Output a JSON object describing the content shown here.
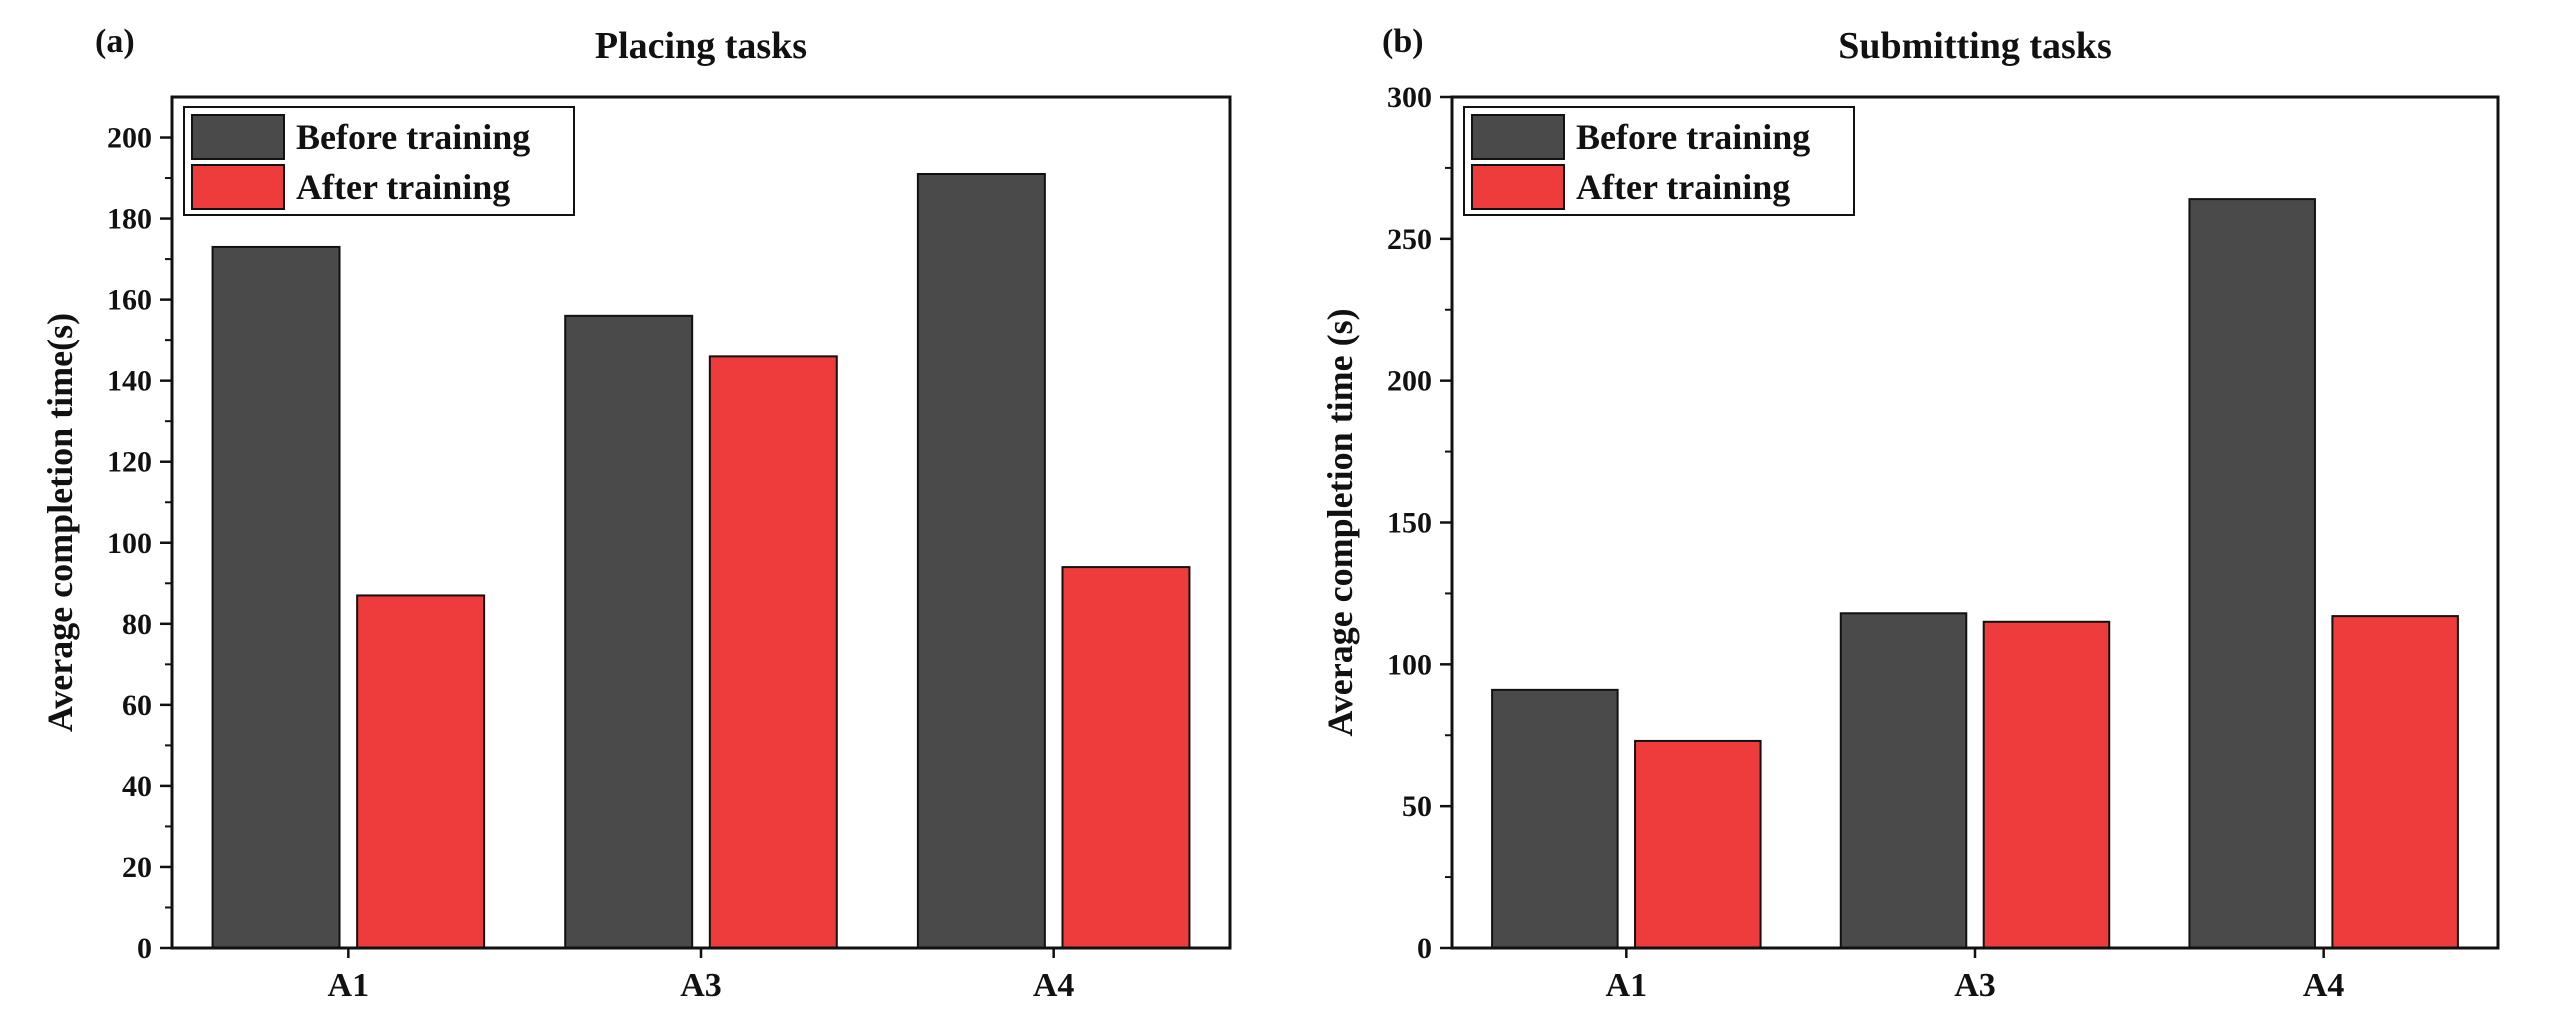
{
  "chart_data": [
    {
      "panel": "(a)",
      "type": "bar",
      "title": "Placing tasks",
      "xlabel": "",
      "ylabel": "Average completion time(s)",
      "categories": [
        "A1",
        "A3",
        "A4"
      ],
      "ylim": [
        0,
        210
      ],
      "yticks": [
        0,
        20,
        40,
        60,
        80,
        100,
        120,
        140,
        160,
        180,
        200
      ],
      "legend_position": "top-left",
      "grid": false,
      "series": [
        {
          "name": "Before training",
          "color": "#4a4a4a",
          "values": [
            173,
            156,
            191
          ]
        },
        {
          "name": "After training",
          "color": "#ee3b3b",
          "values": [
            87,
            146,
            94
          ]
        }
      ]
    },
    {
      "panel": "(b)",
      "type": "bar",
      "title": "Submitting tasks",
      "xlabel": "",
      "ylabel": "Average completion time (s)",
      "categories": [
        "A1",
        "A3",
        "A4"
      ],
      "ylim": [
        0,
        300
      ],
      "yticks": [
        0,
        50,
        100,
        150,
        200,
        250,
        300
      ],
      "legend_position": "top-left",
      "grid": false,
      "series": [
        {
          "name": "Before training",
          "color": "#4a4a4a",
          "values": [
            91,
            118,
            264
          ]
        },
        {
          "name": "After training",
          "color": "#ee3b3b",
          "values": [
            73,
            115,
            117
          ]
        }
      ]
    }
  ]
}
